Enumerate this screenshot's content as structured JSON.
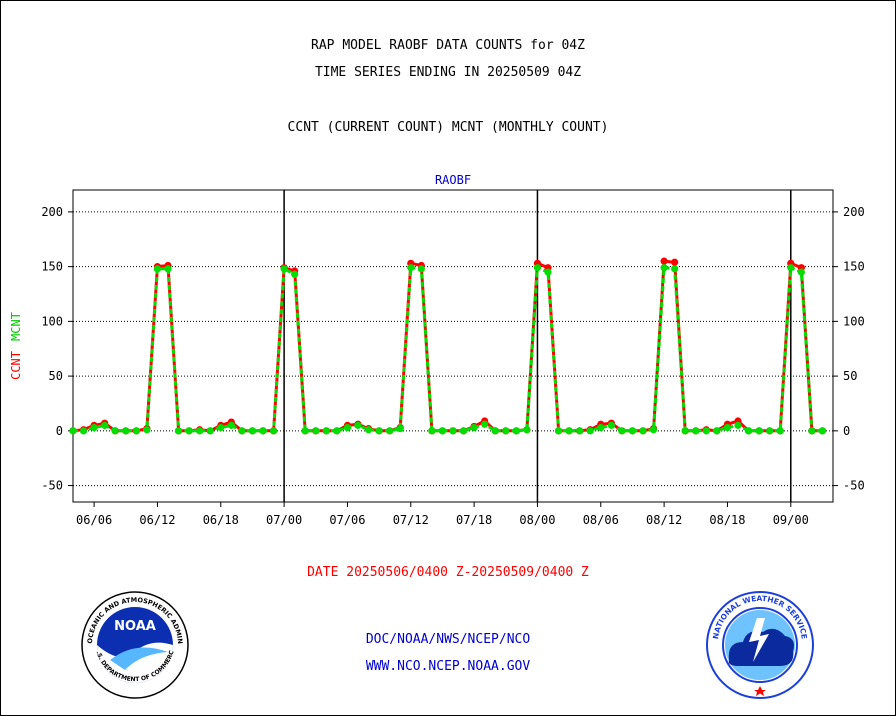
{
  "header": {
    "title": "RAP MODEL RAOBF DATA COUNTS for 04Z",
    "subtitle": "TIME SERIES ENDING IN 20250509 04Z",
    "legend_line": "CCNT (CURRENT COUNT) MCNT (MONTHLY COUNT)"
  },
  "footer": {
    "date_range": "DATE 20250506/0400 Z-20250509/0400 Z",
    "org": "DOC/NOAA/NWS/NCEP/NCO",
    "url": "WWW.NCO.NCEP.NOAA.GOV",
    "noaa_logo_text": "NOAA",
    "noaa_ring_text": "NATIONAL OCEANIC AND ATMOSPHERIC ADMINISTRATION",
    "noaa_ring_bottom": "U.S. DEPARTMENT OF COMMERCE",
    "nws_ring_text": "NATIONAL WEATHER SERVICE"
  },
  "chart_data": {
    "type": "line",
    "panel_title": "RAOBF",
    "ylabel_parts": [
      {
        "text": "CCNT",
        "color": "#ff0000"
      },
      {
        "text": "MCNT",
        "color": "#00cc00"
      }
    ],
    "ylim": [
      -65,
      220
    ],
    "yticks": [
      -50,
      0,
      50,
      100,
      150,
      200
    ],
    "xticks": [
      {
        "label": "06/06",
        "x": 2
      },
      {
        "label": "06/12",
        "x": 8
      },
      {
        "label": "06/18",
        "x": 14
      },
      {
        "label": "07/00",
        "x": 20
      },
      {
        "label": "07/06",
        "x": 26
      },
      {
        "label": "07/12",
        "x": 32
      },
      {
        "label": "07/18",
        "x": 38
      },
      {
        "label": "08/00",
        "x": 44
      },
      {
        "label": "08/06",
        "x": 50
      },
      {
        "label": "08/12",
        "x": 56
      },
      {
        "label": "08/18",
        "x": 62
      },
      {
        "label": "09/00",
        "x": 68
      }
    ],
    "day_boundaries": [
      20,
      44,
      68
    ],
    "xlim": [
      0,
      72
    ],
    "grid": "horizontal dotted",
    "series": [
      {
        "name": "CCNT",
        "color": "#ff0000",
        "x": [
          0,
          1,
          2,
          3,
          4,
          5,
          6,
          7,
          8,
          9,
          10,
          11,
          12,
          13,
          14,
          15,
          16,
          17,
          18,
          19,
          20,
          21,
          22,
          23,
          24,
          25,
          26,
          27,
          28,
          29,
          30,
          31,
          32,
          33,
          34,
          35,
          36,
          37,
          38,
          39,
          40,
          41,
          42,
          43,
          44,
          45,
          46,
          47,
          48,
          49,
          50,
          51,
          52,
          53,
          54,
          55,
          56,
          57,
          58,
          59,
          60,
          61,
          62,
          63,
          64,
          65,
          66,
          67,
          68,
          69,
          70,
          71
        ],
        "values": [
          0,
          1,
          5,
          7,
          0,
          0,
          0,
          2,
          150,
          151,
          0,
          0,
          1,
          0,
          5,
          8,
          0,
          0,
          0,
          0,
          149,
          146,
          0,
          0,
          0,
          0,
          5,
          6,
          2,
          0,
          0,
          3,
          153,
          151,
          0,
          0,
          0,
          0,
          4,
          9,
          0,
          0,
          0,
          1,
          153,
          149,
          0,
          0,
          0,
          1,
          6,
          7,
          0,
          0,
          0,
          2,
          155,
          154,
          0,
          0,
          1,
          0,
          6,
          9,
          0,
          0,
          0,
          0,
          153,
          149,
          0,
          0
        ]
      },
      {
        "name": "MCNT",
        "color": "#00dd00",
        "x": [
          0,
          1,
          2,
          3,
          4,
          5,
          6,
          7,
          8,
          9,
          10,
          11,
          12,
          13,
          14,
          15,
          16,
          17,
          18,
          19,
          20,
          21,
          22,
          23,
          24,
          25,
          26,
          27,
          28,
          29,
          30,
          31,
          32,
          33,
          34,
          35,
          36,
          37,
          38,
          39,
          40,
          41,
          42,
          43,
          44,
          45,
          46,
          47,
          48,
          49,
          50,
          51,
          52,
          53,
          54,
          55,
          56,
          57,
          58,
          59,
          60,
          61,
          62,
          63,
          64,
          65,
          66,
          67,
          68,
          69,
          70,
          71
        ],
        "values": [
          0,
          0,
          3,
          5,
          0,
          0,
          0,
          1,
          148,
          148,
          0,
          0,
          0,
          0,
          3,
          5,
          0,
          0,
          0,
          0,
          148,
          143,
          0,
          0,
          0,
          0,
          3,
          5,
          1,
          0,
          0,
          2,
          149,
          148,
          0,
          0,
          0,
          0,
          3,
          6,
          0,
          0,
          0,
          1,
          149,
          145,
          0,
          0,
          0,
          0,
          3,
          5,
          0,
          0,
          0,
          1,
          149,
          148,
          0,
          0,
          0,
          0,
          3,
          5,
          0,
          0,
          0,
          0,
          149,
          145,
          0,
          0
        ]
      }
    ]
  }
}
